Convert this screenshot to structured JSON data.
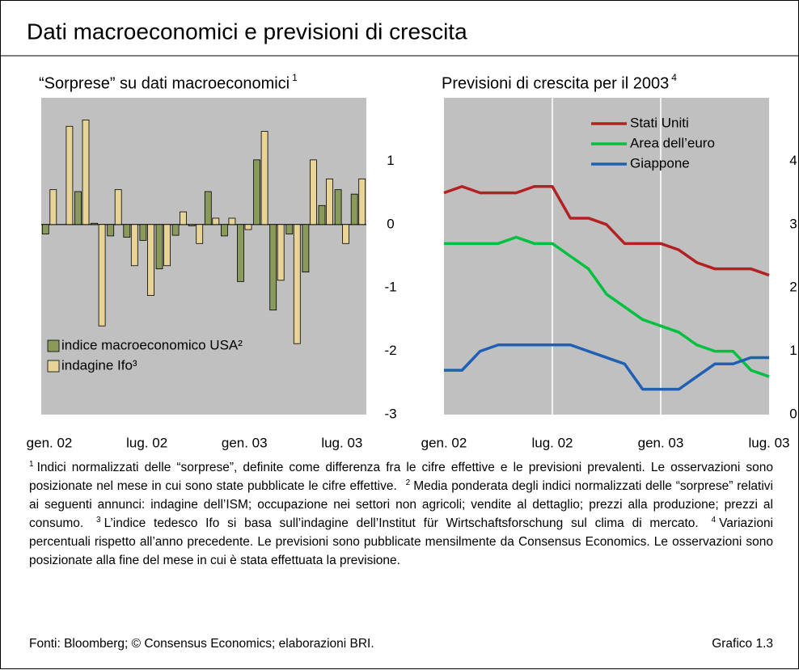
{
  "header": {
    "title": "Dati macroeconomici e previsioni di crescita"
  },
  "chart_data": [
    {
      "type": "bar",
      "title": "“Sorprese” su dati macroeconomici",
      "title_note": "1",
      "categories": [
        "gen. 02",
        null,
        null,
        null,
        null,
        null,
        "lug. 02",
        null,
        null,
        null,
        null,
        null,
        "gen. 03",
        null,
        null,
        null,
        null,
        null,
        "lug. 03",
        null
      ],
      "series": [
        {
          "name": "indice macroeconomico USA²",
          "color": "#8a9a5b",
          "values": [
            -0.15,
            0,
            0.52,
            0.02,
            -0.18,
            -0.2,
            -0.25,
            -0.7,
            -0.17,
            -0.02,
            0.52,
            -0.18,
            -0.9,
            1.02,
            -1.35,
            -0.15,
            -0.75,
            0.3,
            0.55,
            0.48
          ]
        },
        {
          "name": "indagine Ifo³",
          "color": "#e8d496",
          "values": [
            0.55,
            1.55,
            1.65,
            -1.6,
            0.55,
            -0.65,
            -1.12,
            -0.65,
            0.2,
            -0.3,
            0.1,
            0.1,
            -0.08,
            1.47,
            -0.88,
            -1.88,
            1.02,
            0.72,
            -0.3,
            0.72
          ]
        }
      ],
      "ylim": [
        -3,
        2
      ],
      "yticks": [
        -3,
        -2,
        -1,
        0,
        1
      ],
      "legend": "lower left",
      "background": "#c0c0c0"
    },
    {
      "type": "line",
      "title": "Previsioni di crescita per il 2003",
      "title_note": "4",
      "categories": [
        "gen. 02",
        null,
        null,
        null,
        null,
        null,
        "lug. 02",
        null,
        null,
        null,
        null,
        null,
        "gen. 03",
        null,
        null,
        null,
        null,
        null,
        "lug. 03"
      ],
      "series": [
        {
          "name": "Stati Uniti",
          "color": "#b22222",
          "values": [
            3.5,
            3.6,
            3.5,
            3.5,
            3.5,
            3.6,
            3.6,
            3.1,
            3.1,
            3.0,
            2.7,
            2.7,
            2.7,
            2.6,
            2.4,
            2.3,
            2.3,
            2.3,
            2.2
          ]
        },
        {
          "name": "Area dell’euro",
          "color": "#00c040",
          "values": [
            2.7,
            2.7,
            2.7,
            2.7,
            2.8,
            2.7,
            2.7,
            2.5,
            2.3,
            1.9,
            1.7,
            1.5,
            1.4,
            1.3,
            1.1,
            1.0,
            1.0,
            0.7,
            0.6
          ]
        },
        {
          "name": "Giappone",
          "color": "#1f5fb4",
          "values": [
            0.7,
            0.7,
            1.0,
            1.1,
            1.1,
            1.1,
            1.1,
            1.1,
            1.0,
            0.9,
            0.8,
            0.4,
            0.4,
            0.4,
            0.6,
            0.8,
            0.8,
            0.9,
            0.9
          ]
        }
      ],
      "ylim": [
        0,
        5
      ],
      "yticks": [
        0,
        1,
        2,
        3,
        4
      ],
      "xgrid": true,
      "legend": "upper right",
      "background": "#c0c0c0"
    }
  ],
  "notes": [
    {
      "n": "1",
      "text": "Indici normalizzati delle “sorprese”, definite come differenza fra le cifre effettive e le previsioni prevalenti. Le osservazioni sono posizionate nel mese in cui sono state pubblicate le cifre effettive."
    },
    {
      "n": "2",
      "text": "Media ponderata degli indici normalizzati delle “sorprese” relativi ai seguenti annunci: indagine dell’ISM; occupazione nei settori non agricoli; vendite al dettaglio; prezzi alla produzione; prezzi al consumo."
    },
    {
      "n": "3",
      "text": "L’indice tedesco Ifo si basa sull’indagine dell’Institut für Wirtschaftsforschung sul clima di mercato."
    },
    {
      "n": "4",
      "text": "Variazioni percentuali rispetto all’anno precedente. Le previsioni sono pubblicate mensilmente da Consensus Economics. Le osservazioni sono posizionate alla fine del mese in cui è stata effettuata la previsione."
    }
  ],
  "source": "Fonti: Bloomberg; © Consensus Economics; elaborazioni BRI.",
  "figure_label": "Grafico 1.3"
}
